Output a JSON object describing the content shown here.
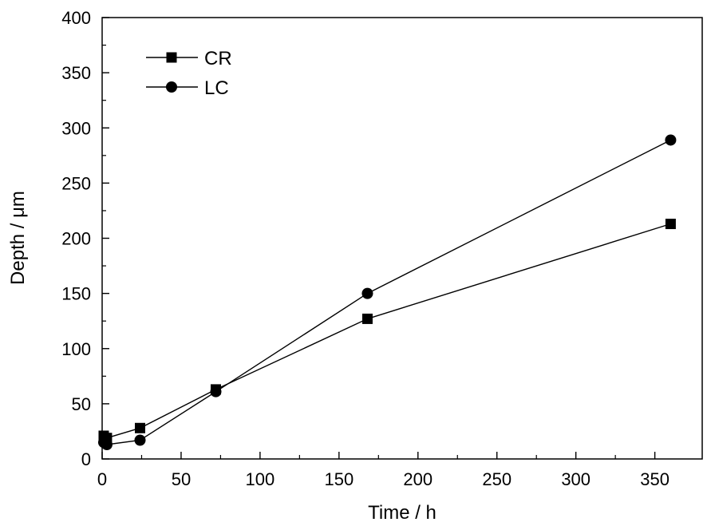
{
  "chart_data": {
    "type": "line",
    "title": "",
    "xlabel": "Time / h",
    "ylabel": "Depth / μm",
    "xlim": [
      0,
      380
    ],
    "ylim": [
      0,
      400
    ],
    "xticks": [
      0,
      50,
      100,
      150,
      200,
      250,
      300,
      350
    ],
    "yticks": [
      0,
      50,
      100,
      150,
      200,
      250,
      300,
      350,
      400
    ],
    "grid": false,
    "legend_position": "top-left",
    "series": [
      {
        "name": "CR",
        "marker": "square",
        "x": [
          1,
          3,
          24,
          72,
          168,
          360
        ],
        "y": [
          21,
          19,
          28,
          63,
          127,
          213
        ]
      },
      {
        "name": "LC",
        "marker": "circle",
        "x": [
          1,
          3,
          24,
          72,
          168,
          360
        ],
        "y": [
          15,
          13,
          17,
          61,
          150,
          289
        ]
      }
    ],
    "colors": {
      "line": "#000000",
      "marker": "#000000",
      "background": "#ffffff"
    }
  }
}
